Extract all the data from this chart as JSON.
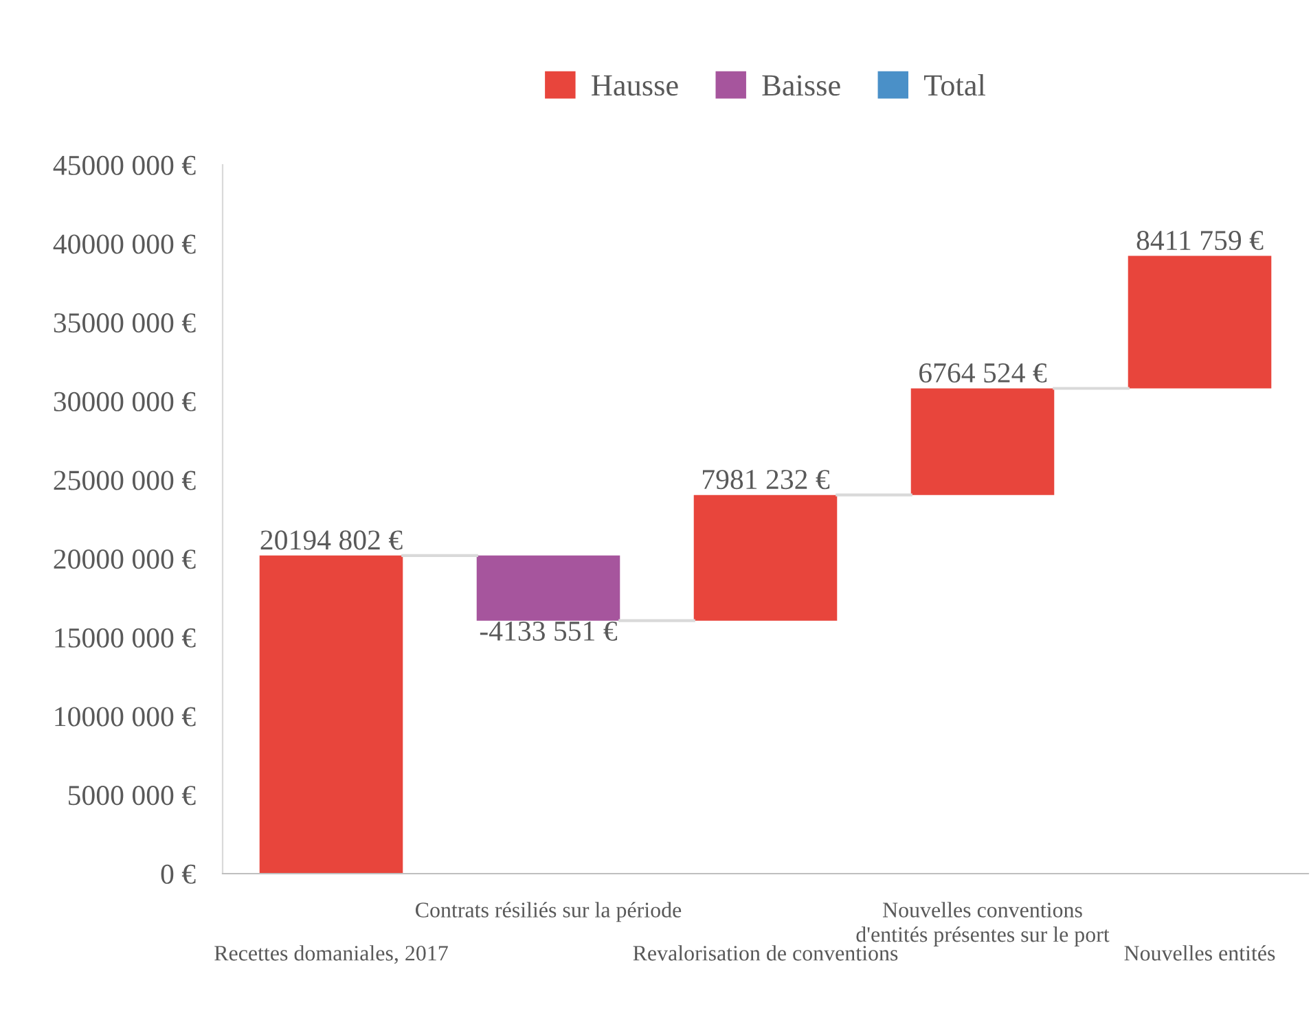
{
  "chart_data": {
    "type": "bar",
    "categories": [
      "Recettes domaniales, 2017",
      "Contrats résiliés sur la période",
      "Revalorisation de conventions",
      "Nouvelles conventions\nd'entités présentes sur le port",
      "Nouvelles entités"
    ],
    "series": [
      {
        "name": "Hausse",
        "color": "#e8453c",
        "base": [
          0,
          null,
          16061251,
          24042483,
          30807007
        ],
        "values": [
          20194802,
          null,
          7981232,
          6764524,
          8411759
        ],
        "value_labels": [
          "20194 802 €",
          null,
          "7981 232 €",
          "6764 524 €",
          "8411 759 €"
        ]
      },
      {
        "name": "Baisse",
        "color": "#a6559d",
        "base": [
          null,
          20194802,
          null,
          null,
          null
        ],
        "values": [
          null,
          -4133551,
          null,
          null,
          null
        ],
        "value_labels": [
          null,
          "-4133 551 €",
          null,
          null,
          null
        ]
      },
      {
        "name": "Total",
        "color": "#4a90c8",
        "values": [
          null,
          null,
          null,
          null,
          null
        ]
      }
    ],
    "ylim": [
      0,
      45000000
    ],
    "yticks": [
      {
        "value": 0,
        "label": "0 €"
      },
      {
        "value": 5000000,
        "label": "5000 000 €"
      },
      {
        "value": 10000000,
        "label": "10000 000 €"
      },
      {
        "value": 15000000,
        "label": "15000 000 €"
      },
      {
        "value": 20000000,
        "label": "20000 000 €"
      },
      {
        "value": 25000000,
        "label": "25000 000 €"
      },
      {
        "value": 30000000,
        "label": "30000 000 €"
      },
      {
        "value": 35000000,
        "label": "35000 000 €"
      },
      {
        "value": 40000000,
        "label": "40000 000 €"
      },
      {
        "value": 45000000,
        "label": "45000 000 €"
      }
    ],
    "legend": "top",
    "grid": false
  }
}
